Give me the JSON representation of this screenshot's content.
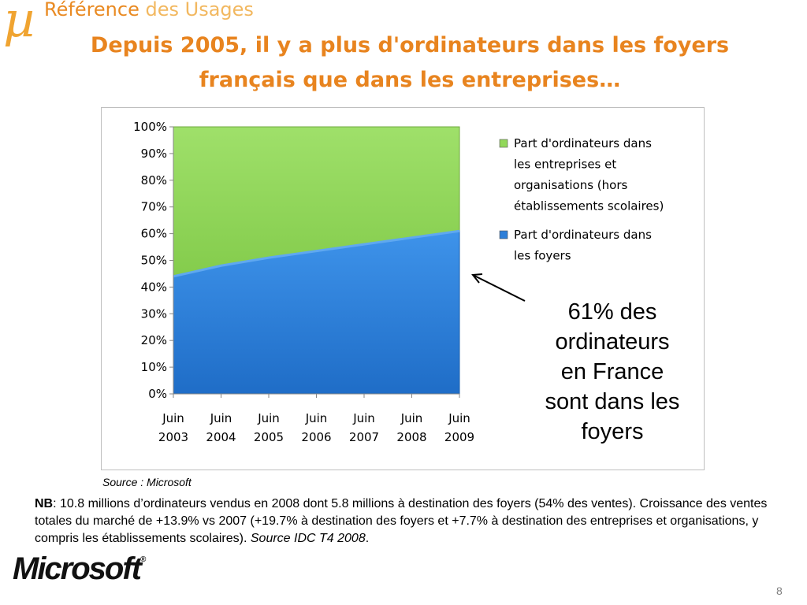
{
  "brand": {
    "symbol": "µ",
    "name_strong": "Référence",
    "name_light": " des Usages"
  },
  "title": {
    "line1": "Depuis 2005, il y a plus d'ordinateurs dans les foyers",
    "line2": "français que dans les entreprises…"
  },
  "callout": {
    "line1": "61% des",
    "line2": "ordinateurs",
    "line3": "en France",
    "line4": "sont dans les",
    "line5": "foyers"
  },
  "source": "Source : Microsoft",
  "note": {
    "prefix": "NB",
    "text": ": 10.8 millions d’ordinateurs vendus en 2008 dont 5.8 millions à destination des foyers (54% des ventes). Croissance des ventes totales du marché de +13.9% vs 2007 (+19.7% à destination des foyers et +7.7% à destination des entreprises et organisations, y compris les établissements scolaires). ",
    "source_italic": "Source IDC T4 2008",
    "suffix": "."
  },
  "logo": {
    "text": "Microsoft",
    "mark": "®"
  },
  "page_number": "8",
  "colors": {
    "accent": "#E8841F",
    "households": "#2F7FD8",
    "enterprises": "#92D85A"
  },
  "chart_data": {
    "type": "area",
    "stacked": true,
    "percent": true,
    "x": [
      "Juin 2003",
      "Juin 2004",
      "Juin 2005",
      "Juin 2006",
      "Juin 2007",
      "Juin 2008",
      "Juin 2009"
    ],
    "ylim": [
      0,
      100
    ],
    "yticks": [
      "0%",
      "10%",
      "20%",
      "30%",
      "40%",
      "50%",
      "60%",
      "70%",
      "80%",
      "90%",
      "100%"
    ],
    "series": [
      {
        "name": "Part d'ordinateurs dans les foyers",
        "color": "#2F7FD8",
        "values": [
          44,
          48,
          51,
          53.5,
          56,
          58.5,
          61
        ]
      },
      {
        "name": "Part d'ordinateurs dans les entreprises et organisations (hors établissements scolaires)",
        "color": "#92D85A",
        "values": [
          56,
          52,
          49,
          46.5,
          44,
          41.5,
          39
        ]
      }
    ],
    "legend": {
      "position": "right",
      "items": [
        {
          "lines": [
            "Part d'ordinateurs dans",
            "les entreprises et",
            "organisations (hors",
            "établissements scolaires)"
          ],
          "color": "#92D85A"
        },
        {
          "lines": [
            "Part d'ordinateurs dans",
            "les foyers"
          ],
          "color": "#2F7FD8"
        }
      ]
    },
    "grid": false
  }
}
